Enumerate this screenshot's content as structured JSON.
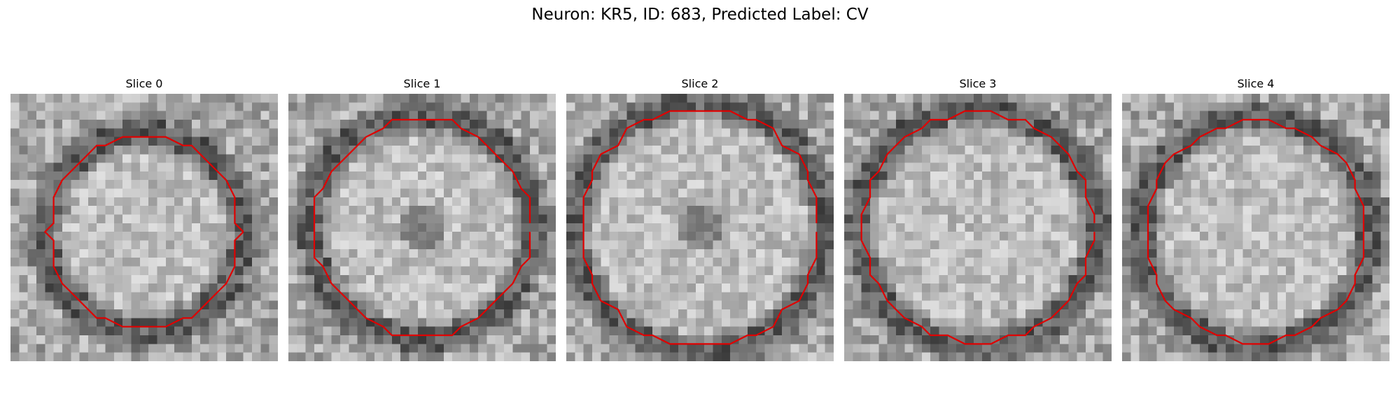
{
  "figure": {
    "title": "Neuron: KR5, ID: 683, Predicted Label: CV"
  },
  "image_panels": [
    {
      "title": "Slice 0",
      "contour_color": "#e00000",
      "description_icon": "em-image-icon"
    },
    {
      "title": "Slice 1",
      "contour_color": "#e00000",
      "description_icon": "em-image-icon"
    },
    {
      "title": "Slice 2",
      "contour_color": "#e00000",
      "description_icon": "em-image-icon"
    },
    {
      "title": "Slice 3",
      "contour_color": "#e00000",
      "description_icon": "em-image-icon"
    },
    {
      "title": "Slice 4",
      "contour_color": "#e00000",
      "description_icon": "em-image-icon"
    }
  ],
  "colormap": "gray",
  "contour_color": "#e00000"
}
